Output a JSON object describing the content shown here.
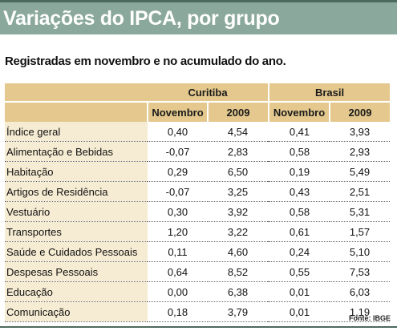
{
  "title": "Variações do IPCA, por grupo",
  "subtitle": "Registradas em novembro e no acumulado do ano.",
  "groups": [
    "Curitiba",
    "Brasil"
  ],
  "subheaders": [
    "Novembro",
    "2009",
    "Novembro",
    "2009"
  ],
  "rows": [
    {
      "label": "Índice geral",
      "values": [
        "0,40",
        "4,54",
        "0,41",
        "3,93"
      ]
    },
    {
      "label": "Alimentação e Bebidas",
      "values": [
        "-0,07",
        "2,83",
        "0,58",
        "2,93"
      ]
    },
    {
      "label": "Habitação",
      "values": [
        "0,29",
        "6,50",
        "0,19",
        "5,49"
      ]
    },
    {
      "label": "Artigos de Residência",
      "values": [
        "-0,07",
        "3,25",
        "0,43",
        "2,51"
      ]
    },
    {
      "label": "Vestuário",
      "values": [
        "0,30",
        "3,92",
        "0,58",
        "5,31"
      ]
    },
    {
      "label": "Transportes",
      "values": [
        "1,20",
        "3,22",
        "0,61",
        "1,57"
      ]
    },
    {
      "label": "Saúde e Cuidados Pessoais",
      "values": [
        "0,11",
        "4,60",
        "0,24",
        "5,10"
      ]
    },
    {
      "label": "Despesas Pessoais",
      "values": [
        "0,64",
        "8,52",
        "0,55",
        "7,53"
      ]
    },
    {
      "label": "Educação",
      "values": [
        "0,00",
        "6,38",
        "0,01",
        "6,03"
      ]
    },
    {
      "label": "Comunicação",
      "values": [
        "0,18",
        "3,79",
        "0,01",
        "1,19"
      ]
    }
  ],
  "source": "Fonte: IBGE",
  "colors": {
    "title_band": "#8aa89c",
    "rule": "#4d6a5f",
    "header": "#e4c88e",
    "label_column": "#f6ecd3"
  }
}
